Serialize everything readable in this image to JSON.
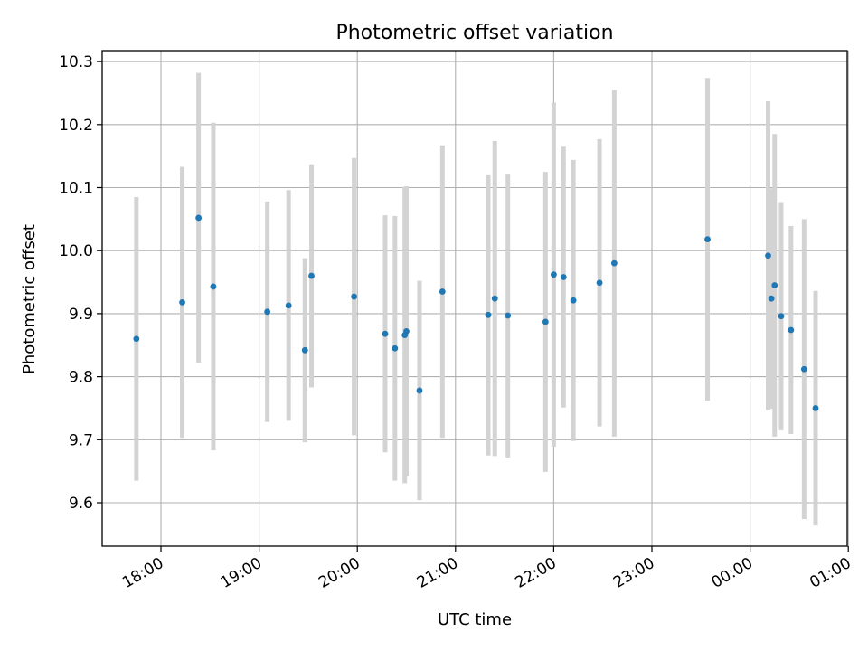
{
  "chart_data": {
    "type": "scatter",
    "title": "Photometric offset variation",
    "xlabel": "UTC time",
    "ylabel": "Photometric offset",
    "x_tick_labels": [
      "18:00",
      "19:00",
      "20:00",
      "21:00",
      "22:00",
      "23:00",
      "00:00",
      "01:00"
    ],
    "y_tick_labels": [
      "9.6",
      "9.7",
      "9.8",
      "9.9",
      "10.0",
      "10.1",
      "10.2",
      "10.3"
    ],
    "ylim": [
      9.53,
      10.32
    ],
    "grid": true,
    "colors": {
      "point": "#1f77b4",
      "errorbar": "#d3d3d3",
      "grid": "#b0b0b0"
    },
    "points": [
      {
        "x": "17:45",
        "y": 9.86,
        "err": 0.225
      },
      {
        "x": "18:13",
        "y": 9.918,
        "err": 0.215
      },
      {
        "x": "18:23",
        "y": 10.052,
        "err": 0.23
      },
      {
        "x": "18:32",
        "y": 9.943,
        "err": 0.26
      },
      {
        "x": "19:05",
        "y": 9.903,
        "err": 0.175
      },
      {
        "x": "19:18",
        "y": 9.913,
        "err": 0.183
      },
      {
        "x": "19:28",
        "y": 9.842,
        "err": 0.146
      },
      {
        "x": "19:32",
        "y": 9.96,
        "err": 0.177
      },
      {
        "x": "19:58",
        "y": 9.927,
        "err": 0.22
      },
      {
        "x": "20:17",
        "y": 9.868,
        "err": 0.188
      },
      {
        "x": "20:23",
        "y": 9.845,
        "err": 0.21
      },
      {
        "x": "20:29",
        "y": 9.866,
        "err": 0.235
      },
      {
        "x": "20:30",
        "y": 9.872,
        "err": 0.23
      },
      {
        "x": "20:38",
        "y": 9.778,
        "err": 0.174
      },
      {
        "x": "20:52",
        "y": 9.935,
        "err": 0.232
      },
      {
        "x": "21:20",
        "y": 9.898,
        "err": 0.223
      },
      {
        "x": "21:24",
        "y": 9.924,
        "err": 0.25
      },
      {
        "x": "21:32",
        "y": 9.897,
        "err": 0.225
      },
      {
        "x": "21:55",
        "y": 9.887,
        "err": 0.238
      },
      {
        "x": "22:00",
        "y": 9.962,
        "err": 0.273
      },
      {
        "x": "22:06",
        "y": 9.958,
        "err": 0.207
      },
      {
        "x": "22:12",
        "y": 9.921,
        "err": 0.223
      },
      {
        "x": "22:28",
        "y": 9.949,
        "err": 0.228
      },
      {
        "x": "22:37",
        "y": 9.98,
        "err": 0.275
      },
      {
        "x": "23:34",
        "y": 10.018,
        "err": 0.256
      },
      {
        "x": "00:11",
        "y": 9.992,
        "err": 0.245
      },
      {
        "x": "00:13",
        "y": 9.924,
        "err": 0.175
      },
      {
        "x": "00:15",
        "y": 9.945,
        "err": 0.24
      },
      {
        "x": "00:19",
        "y": 9.896,
        "err": 0.181
      },
      {
        "x": "00:25",
        "y": 9.874,
        "err": 0.165
      },
      {
        "x": "00:33",
        "y": 9.812,
        "err": 0.238
      },
      {
        "x": "00:40",
        "y": 9.75,
        "err": 0.186
      }
    ]
  }
}
